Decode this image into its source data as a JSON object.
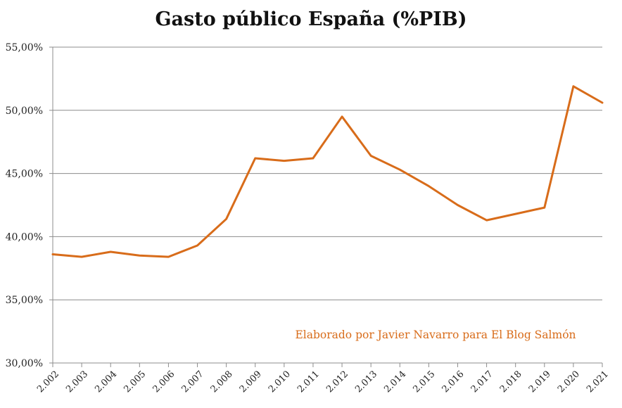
{
  "chart_data": {
    "type": "line",
    "title": "Gasto público España (%PIB)",
    "xlabel": "",
    "ylabel": "",
    "x": [
      "2.002",
      "2.003",
      "2.004",
      "2.005",
      "2.006",
      "2.007",
      "2.008",
      "2.009",
      "2.010",
      "2.011",
      "2.012",
      "2.013",
      "2.014",
      "2.015",
      "2.016",
      "2.017",
      "2.018",
      "2.019",
      "2.020",
      "2.021"
    ],
    "series": [
      {
        "values": [
          38.6,
          38.4,
          38.8,
          38.5,
          38.4,
          39.3,
          41.4,
          46.2,
          46.0,
          46.2,
          49.5,
          46.4,
          45.3,
          44.0,
          42.5,
          41.3,
          41.8,
          42.3,
          51.9,
          50.6
        ]
      }
    ],
    "ylim": [
      30,
      55
    ],
    "yticks": [
      {
        "value": 30,
        "label": "30,00%"
      },
      {
        "value": 35,
        "label": "35,00%"
      },
      {
        "value": 40,
        "label": "40,00%"
      },
      {
        "value": 45,
        "label": "45,00%"
      },
      {
        "value": 50,
        "label": "50,00%"
      },
      {
        "value": 55,
        "label": "55,00%"
      }
    ],
    "grid": "horizontal",
    "annotation": "Elaborado por Javier Navarro para El Blog Salmón",
    "colors": {
      "line": "#d86c1a",
      "annotation": "#d86c1a"
    }
  }
}
